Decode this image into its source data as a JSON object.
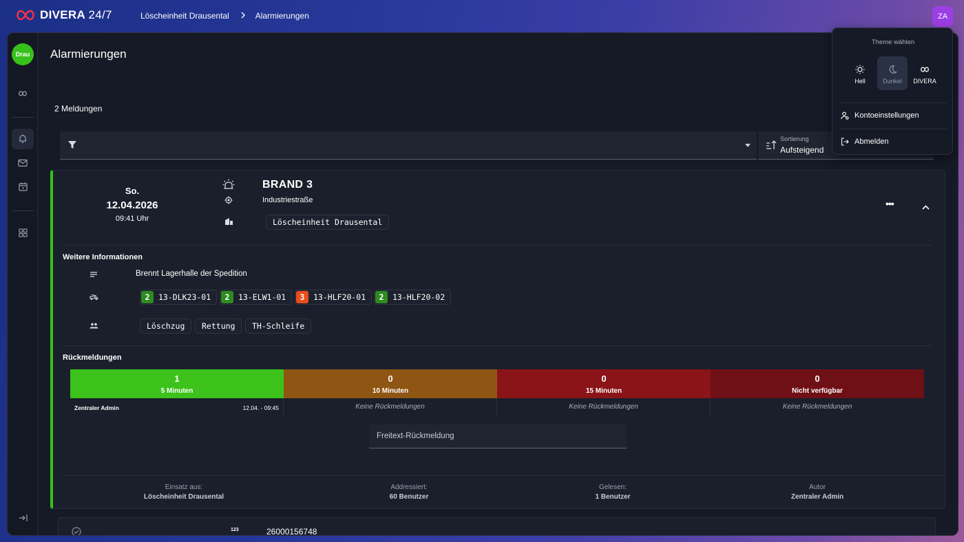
{
  "brand": {
    "name_bold": "DIVERA",
    "name_thin": "24/7"
  },
  "breadcrumb": {
    "unit": "Löscheinheit Drausental",
    "page": "Alarmierungen"
  },
  "user": {
    "initials": "ZA"
  },
  "sidebar": {
    "unit_badge": "Drau"
  },
  "page": {
    "title": "Alarmierungen",
    "count": "2 Meldungen"
  },
  "filter": {
    "placeholder": ""
  },
  "sort": {
    "label": "Sortierung",
    "value": "Aufsteigend"
  },
  "alarm": {
    "weekday": "So.",
    "date": "12.04.2026",
    "time": "09:41 Uhr",
    "title": "BRAND 3",
    "address": "Industriestraße",
    "unit_chip": "Löscheinheit Drausental",
    "more_info_title": "Weitere Informationen",
    "description": "Brennt Lagerhalle der Spedition",
    "vehicles": [
      {
        "count": "2",
        "name": "13-DLK23-01",
        "color": "#2e8b20"
      },
      {
        "count": "2",
        "name": "13-ELW1-01",
        "color": "#2e8b20"
      },
      {
        "count": "3",
        "name": "13-HLF20-01",
        "color": "#ea4e1b"
      },
      {
        "count": "2",
        "name": "13-HLF20-02",
        "color": "#2e8b20"
      }
    ],
    "groups": [
      "Löschzug",
      "Rettung",
      "TH-Schleife"
    ],
    "responses_title": "Rückmeldungen",
    "responses": [
      {
        "count": "1",
        "label": "5 Minuten",
        "color": "#3cc21a",
        "entry_user": "Zentraler Admin",
        "entry_time": "12.04. - 09:45",
        "empty": ""
      },
      {
        "count": "0",
        "label": "10 Minuten",
        "color": "#8f5513",
        "empty": "Keine Rückmeldungen"
      },
      {
        "count": "0",
        "label": "15 Minuten",
        "color": "#8a1417",
        "empty": "Keine Rückmeldungen"
      },
      {
        "count": "0",
        "label": "Nicht verfügbar",
        "color": "#6f1016",
        "empty": "Keine Rückmeldungen"
      }
    ],
    "freetext_placeholder": "Freitext-Rückmeldung",
    "footer": [
      {
        "label": "Einsatz aus:",
        "value": "Löscheinheit Drausental"
      },
      {
        "label": "Addressiert:",
        "value": "60 Benutzer"
      },
      {
        "label": "Gelesen:",
        "value": "1 Benutzer"
      },
      {
        "label": "Autor",
        "value": "Zentraler Admin"
      }
    ]
  },
  "second_alarm": {
    "number_badge": "123",
    "number": "26000156748"
  },
  "theme_menu": {
    "title": "Theme wählen",
    "options": [
      {
        "label": "Hell",
        "icon": "sun-icon"
      },
      {
        "label": "Dunkel",
        "icon": "moon-icon",
        "selected": true
      },
      {
        "label": "DIVERA",
        "icon": "infinity-icon"
      }
    ],
    "account_settings": "Kontoeinstellungen",
    "logout": "Abmelden"
  }
}
